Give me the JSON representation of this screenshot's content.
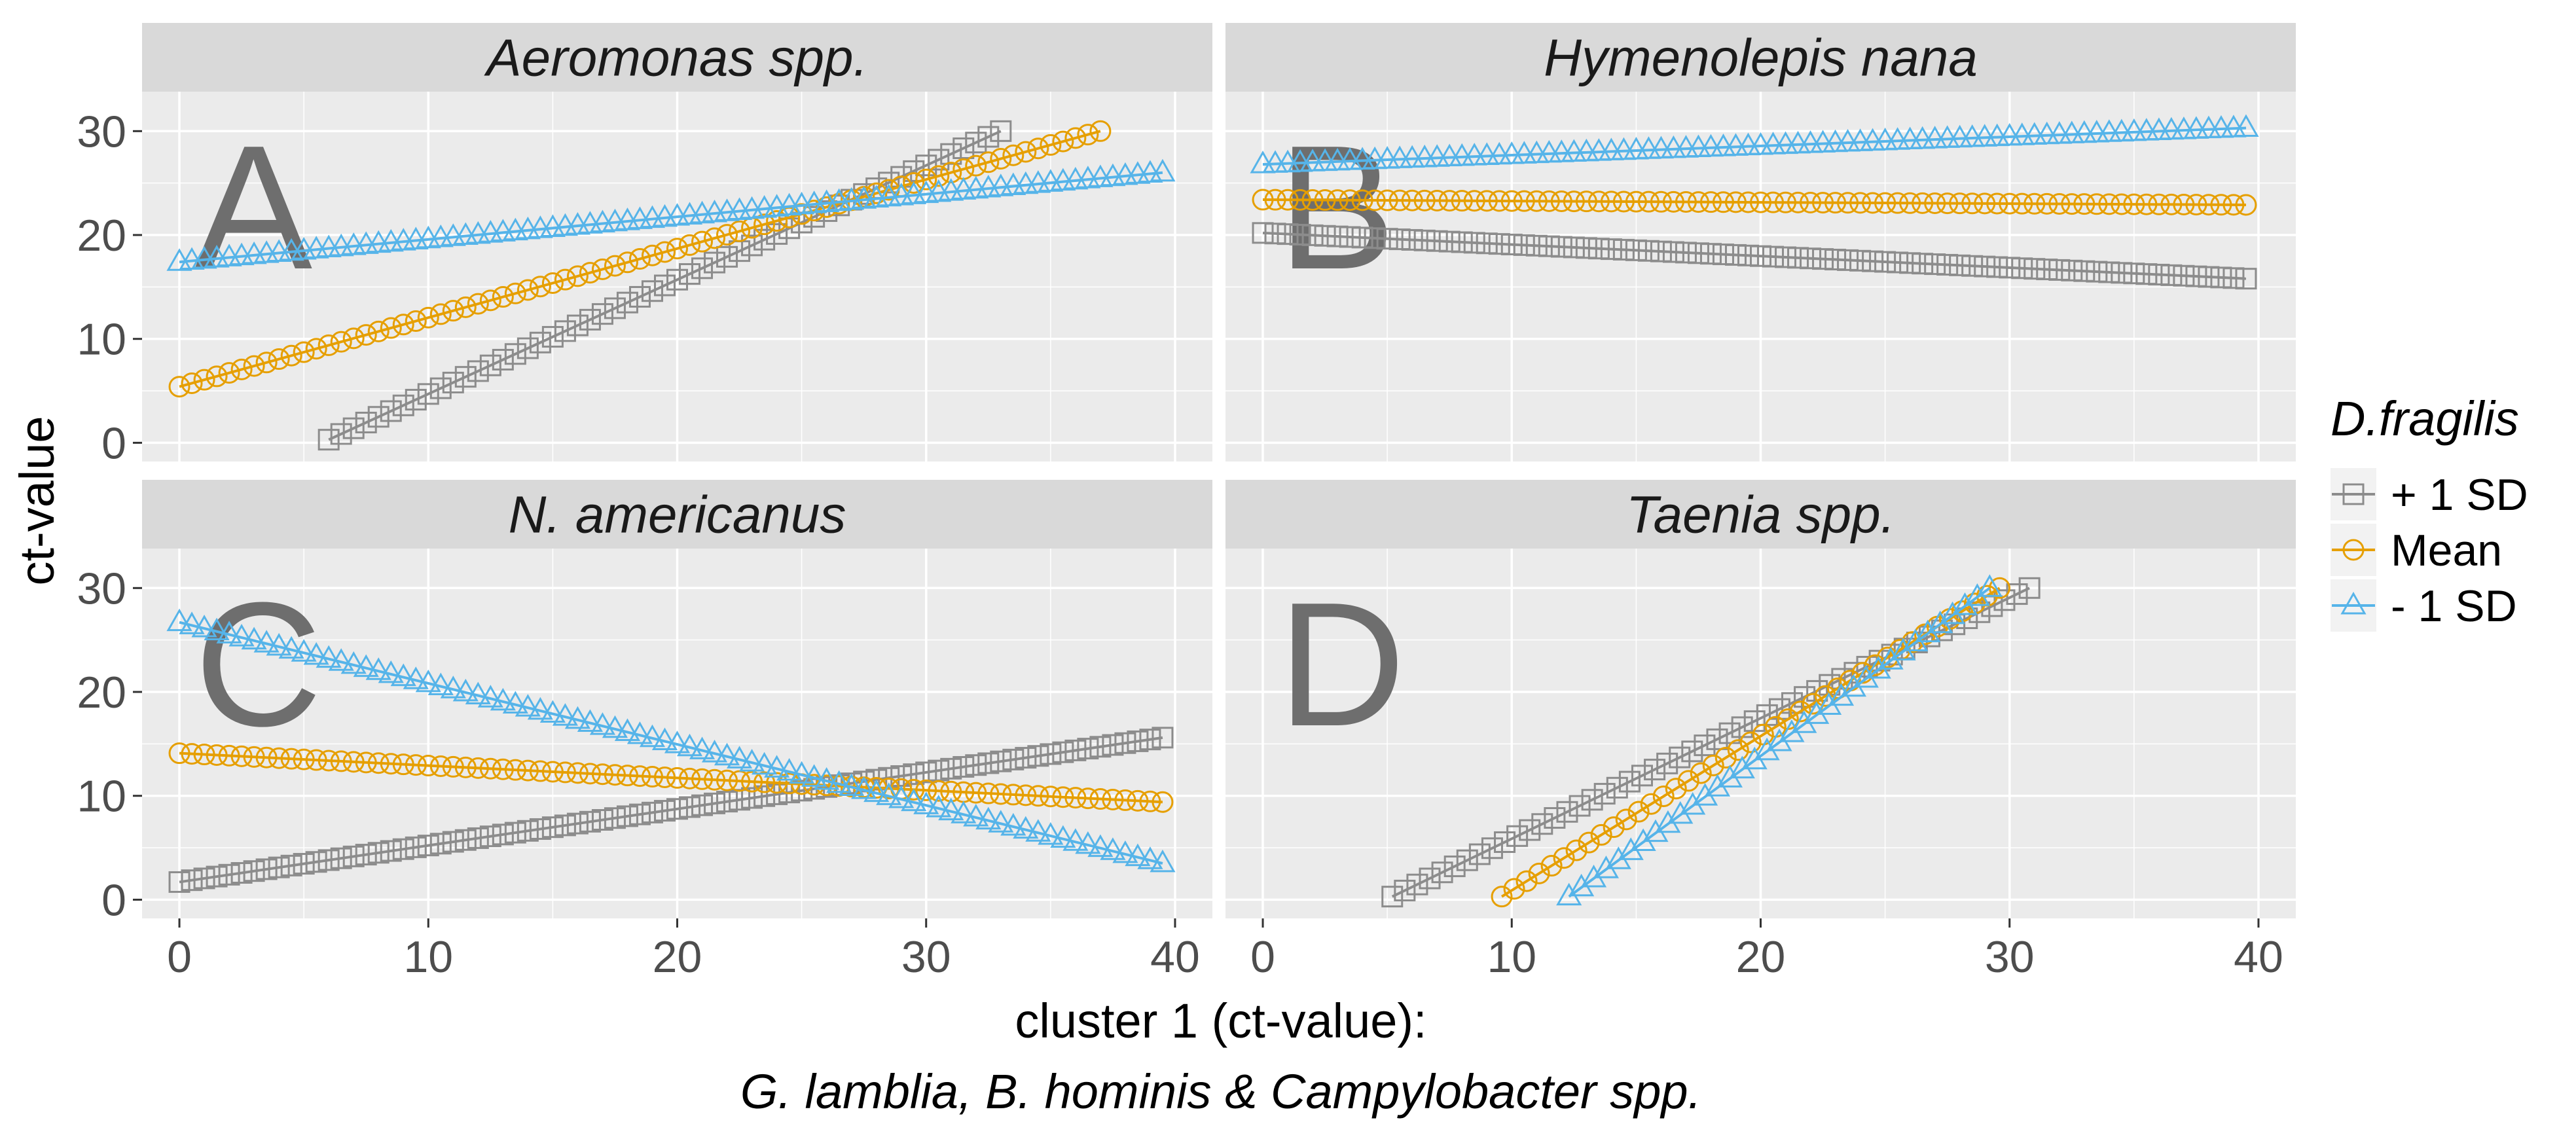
{
  "chart_data": {
    "type": "scatter",
    "ylabel": "ct-value",
    "xlabel_line1": "cluster 1 (ct-value):",
    "xlabel_line2": "G. lamblia, B. hominis & Campylobacter spp.",
    "xlim": [
      -1.5,
      41.5
    ],
    "ylim": [
      -1.8,
      33.8
    ],
    "x_ticks": [
      "0",
      "10",
      "20",
      "30",
      "40"
    ],
    "y_ticks": [
      "0",
      "10",
      "20",
      "30"
    ],
    "grid": true,
    "legend": {
      "title": "D.fragilis",
      "position": "right",
      "entries": [
        {
          "label": "+ 1 SD",
          "color": "#8c8c8c",
          "marker": "square"
        },
        {
          "label": "Mean",
          "color": "#e69f00",
          "marker": "circle"
        },
        {
          "label": "- 1 SD",
          "color": "#56b4e9",
          "marker": "triangle"
        }
      ]
    },
    "panels": [
      {
        "title": "Aeromonas spp.",
        "letter": "A",
        "series": [
          {
            "name": "+ 1 SD",
            "x_start": 6.0,
            "x_end": 33.0,
            "y_start": 0.3,
            "y_end": 30.0
          },
          {
            "name": "Mean",
            "x_start": 0.0,
            "x_end": 37.0,
            "y_start": 5.4,
            "y_end": 30.0
          },
          {
            "name": "- 1 SD",
            "x_start": 0.0,
            "x_end": 39.5,
            "y_start": 17.4,
            "y_end": 26.0
          }
        ]
      },
      {
        "title": "Hymenolepis nana",
        "letter": "B",
        "series": [
          {
            "name": "+ 1 SD",
            "x_start": 0.0,
            "x_end": 39.5,
            "y_start": 20.2,
            "y_end": 15.8
          },
          {
            "name": "Mean",
            "x_start": 0.0,
            "x_end": 39.5,
            "y_start": 23.4,
            "y_end": 22.9
          },
          {
            "name": "- 1 SD",
            "x_start": 0.0,
            "x_end": 39.5,
            "y_start": 26.8,
            "y_end": 30.3
          }
        ]
      },
      {
        "title": "N. americanus",
        "letter": "C",
        "series": [
          {
            "name": "+ 1 SD",
            "x_start": 0.0,
            "x_end": 39.5,
            "y_start": 1.7,
            "y_end": 15.6
          },
          {
            "name": "Mean",
            "x_start": 0.0,
            "x_end": 39.5,
            "y_start": 14.1,
            "y_end": 9.4
          },
          {
            "name": "- 1 SD",
            "x_start": 0.0,
            "x_end": 39.5,
            "y_start": 26.7,
            "y_end": 3.5
          }
        ]
      },
      {
        "title": "Taenia spp.",
        "letter": "D",
        "series": [
          {
            "name": "+ 1 SD",
            "x_start": 5.2,
            "x_end": 30.8,
            "y_start": 0.3,
            "y_end": 30.0
          },
          {
            "name": "Mean",
            "x_start": 9.6,
            "x_end": 29.6,
            "y_start": 0.3,
            "y_end": 30.0
          },
          {
            "name": "- 1 SD",
            "x_start": 12.3,
            "x_end": 29.2,
            "y_start": 0.3,
            "y_end": 30.0
          }
        ]
      }
    ]
  }
}
